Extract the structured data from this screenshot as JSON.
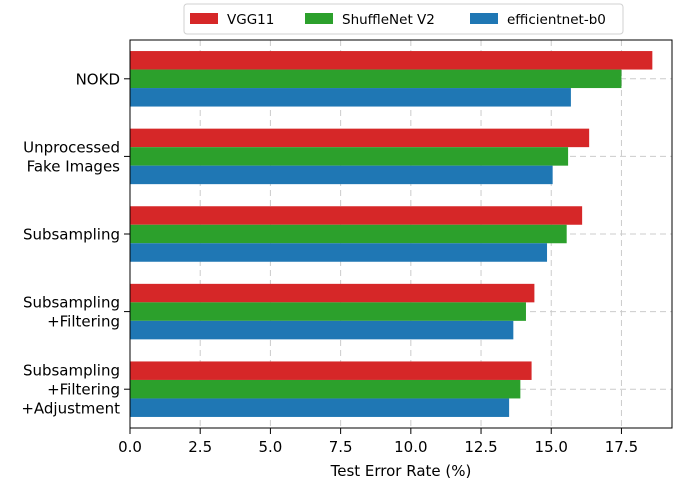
{
  "chart_data": {
    "type": "bar",
    "orientation": "horizontal",
    "categories": [
      [
        "NOKD"
      ],
      [
        "Unprocessed",
        "Fake Images"
      ],
      [
        "Subsampling"
      ],
      [
        "Subsampling",
        "+Filtering"
      ],
      [
        "Subsampling",
        "+Filtering",
        "+Adjustment"
      ]
    ],
    "series": [
      {
        "name": "VGG11",
        "color": "#d62728",
        "values": [
          18.6,
          16.35,
          16.1,
          14.4,
          14.3
        ]
      },
      {
        "name": "ShuffleNet V2",
        "color": "#2ca02c",
        "values": [
          17.5,
          15.6,
          15.55,
          14.1,
          13.9
        ]
      },
      {
        "name": "efficientnet-b0",
        "color": "#1f77b4",
        "values": [
          15.7,
          15.05,
          14.85,
          13.65,
          13.5
        ]
      }
    ],
    "xlabel": "Test Error Rate (%)",
    "ylabel": "",
    "xlim": [
      0,
      19.3
    ],
    "xticks": [
      "0.0",
      "2.5",
      "5.0",
      "7.5",
      "10.0",
      "12.5",
      "15.0",
      "17.5"
    ],
    "grid": true,
    "legend_position": "top"
  }
}
